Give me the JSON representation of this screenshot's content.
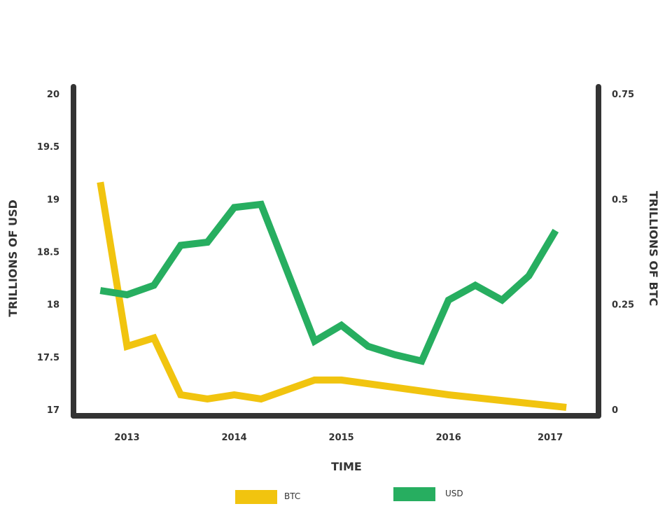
{
  "chart_data": {
    "type": "line",
    "xlabel": "TIME",
    "ylabel_left": "TRILLIONS OF USD",
    "ylabel_right": "TRILLIONS OF BTC",
    "x_ticks": [
      "2013",
      "2014",
      "2015",
      "2016",
      "2017"
    ],
    "y_left_ticks": [
      "20",
      "19.5",
      "19",
      "18.5",
      "18",
      "17.5",
      "17"
    ],
    "y_right_ticks": [
      "0.75",
      "0.5",
      "0.25",
      "0"
    ],
    "ylim_left": [
      17,
      20
    ],
    "ylim_right": [
      0,
      0.75
    ],
    "xlim": [
      2012.5,
      2017.4
    ],
    "series": [
      {
        "name": "BTC",
        "axis": "right",
        "color": "#f1c40f",
        "x": [
          2012.75,
          2013.0,
          2013.25,
          2013.5,
          2013.75,
          2014.0,
          2014.25,
          2014.75,
          2015.0,
          2016.0,
          2017.1
        ],
        "values": [
          0.54,
          0.15,
          0.17,
          0.035,
          0.025,
          0.035,
          0.025,
          0.07,
          0.07,
          0.035,
          0.005
        ]
      },
      {
        "name": "USD",
        "axis": "left",
        "color": "#27ae60",
        "x": [
          2012.75,
          2013.0,
          2013.25,
          2013.5,
          2013.75,
          2014.0,
          2014.25,
          2014.75,
          2015.0,
          2015.25,
          2015.5,
          2015.75,
          2016.0,
          2016.25,
          2016.5,
          2016.75,
          2017.0
        ],
        "values": [
          18.13,
          18.09,
          18.18,
          18.56,
          18.59,
          18.92,
          18.95,
          17.65,
          17.8,
          17.6,
          17.52,
          17.46,
          18.04,
          18.18,
          18.04,
          18.27,
          18.7
        ]
      }
    ],
    "legend": [
      {
        "name": "BTC",
        "color": "#f1c40f"
      },
      {
        "name": "USD",
        "color": "#27ae60"
      }
    ],
    "legend_position": "bottom",
    "grid": false
  }
}
